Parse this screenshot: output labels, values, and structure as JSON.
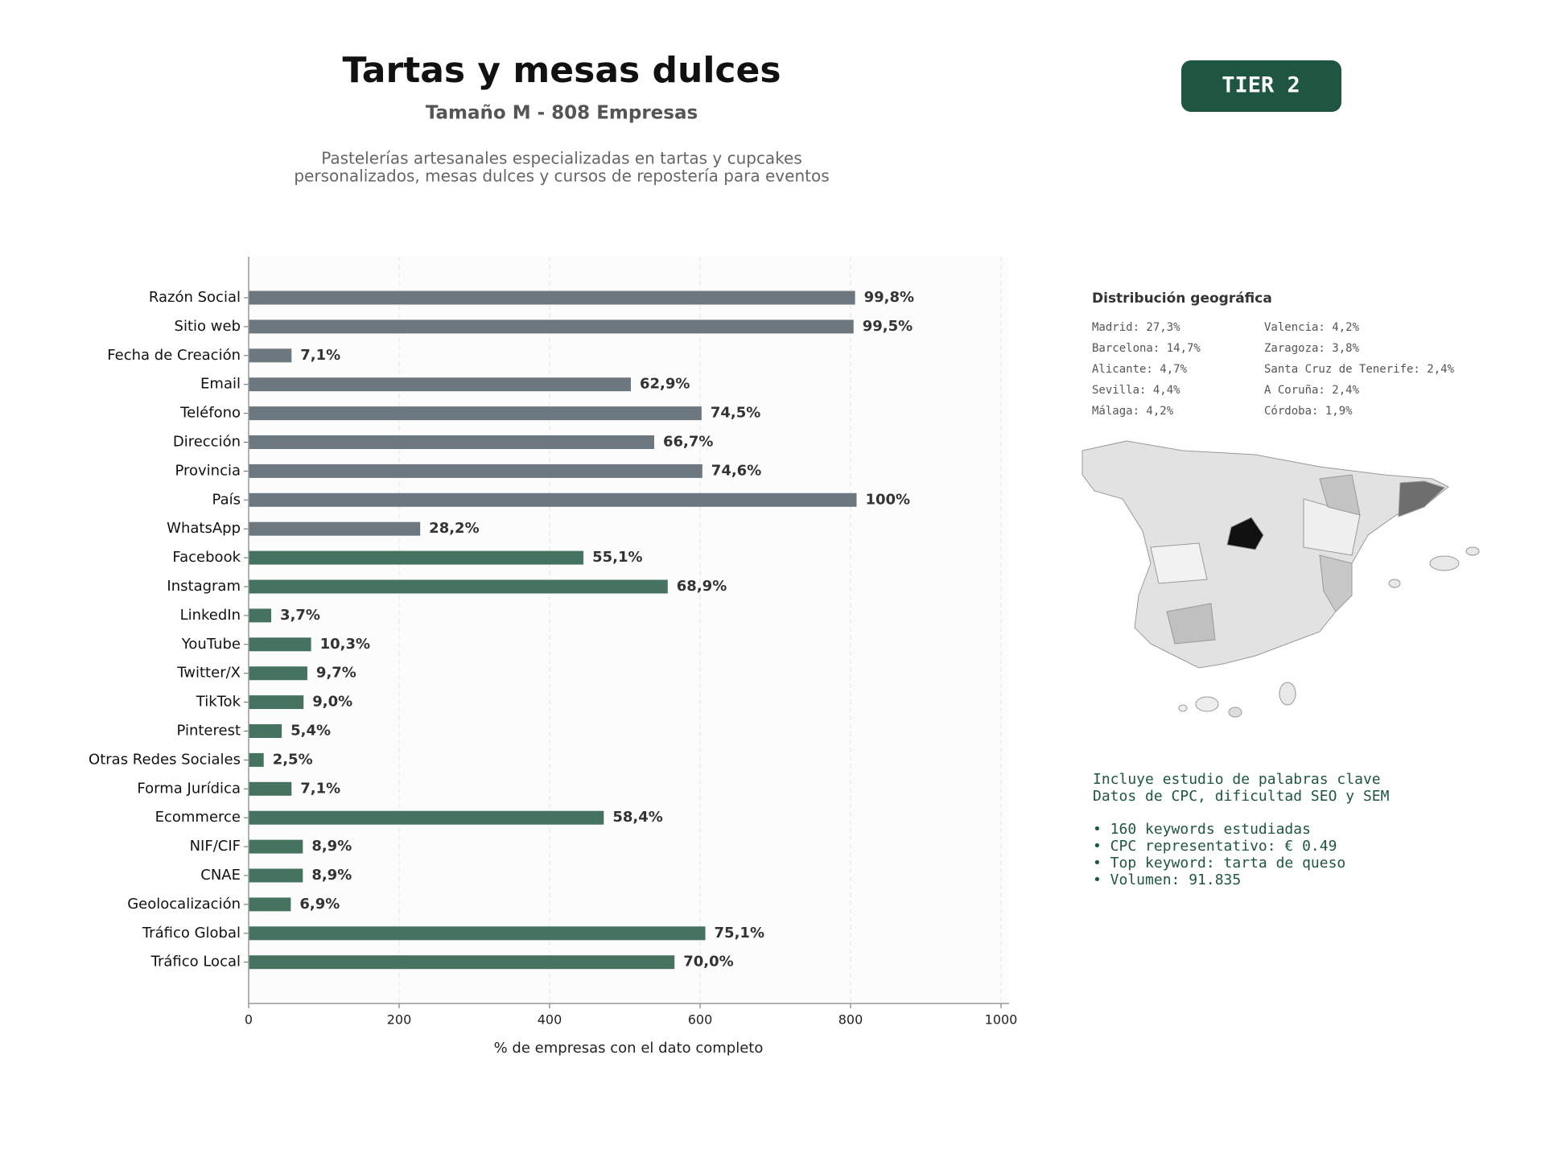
{
  "header": {
    "title": "Tartas y mesas dulces",
    "subtitle": "Tamaño M - 808 Empresas",
    "description": [
      "Pastelerías artesanales especializadas en tartas y cupcakes",
      "personalizados, mesas dulces y cursos de repostería para eventos"
    ],
    "tier": "TIER 2"
  },
  "chart_data": {
    "type": "hbar",
    "categories": [
      "Razón Social",
      "Sitio web",
      "Fecha de Creación",
      "Email",
      "Teléfono",
      "Dirección",
      "Provincia",
      "País",
      "WhatsApp",
      "Facebook",
      "Instagram",
      "LinkedIn",
      "YouTube",
      "Twitter/X",
      "TikTok",
      "Pinterest",
      "Otras Redes Sociales",
      "Forma Jurídica",
      "Ecommerce",
      "NIF/CIF",
      "CNAE",
      "Geolocalización",
      "Tráfico Global",
      "Tráfico Local"
    ],
    "values": [
      806,
      804,
      57,
      508,
      602,
      539,
      603,
      808,
      228,
      445,
      557,
      30,
      83,
      78,
      73,
      44,
      20,
      57,
      472,
      72,
      72,
      56,
      607,
      566
    ],
    "value_labels": [
      "99,8%",
      "99,5%",
      "7,1%",
      "62,9%",
      "74,5%",
      "66,7%",
      "74,6%",
      "100%",
      "28,2%",
      "55,1%",
      "68,9%",
      "3,7%",
      "10,3%",
      "9,7%",
      "9,0%",
      "5,4%",
      "2,5%",
      "7,1%",
      "58,4%",
      "8,9%",
      "8,9%",
      "6,9%",
      "75,1%",
      "70,0%"
    ],
    "colors": [
      "#6c7780",
      "#6c7780",
      "#6c7780",
      "#6c7780",
      "#6c7780",
      "#6c7780",
      "#6c7780",
      "#6c7780",
      "#6c7780",
      "#46735f",
      "#46735f",
      "#46735f",
      "#46735f",
      "#46735f",
      "#46735f",
      "#46735f",
      "#46735f",
      "#46735f",
      "#46735f",
      "#46735f",
      "#46735f",
      "#46735f",
      "#46735f",
      "#46735f"
    ],
    "xlabel": "% de empresas con el dato completo",
    "xlim": [
      0,
      1000
    ],
    "xticks": [
      0,
      200,
      400,
      600,
      800,
      1000
    ],
    "grid": true
  },
  "geo": {
    "title": "Distribución geográfica",
    "items": [
      "Madrid: 27,3%",
      "Barcelona: 14,7%",
      "Alicante: 4,7%",
      "Sevilla: 4,4%",
      "Málaga: 4,2%",
      "Valencia: 4,2%",
      "Zaragoza: 3,8%",
      "Santa Cruz de Tenerife: 2,4%",
      "A Coruña: 2,4%",
      "Córdoba: 1,9%"
    ]
  },
  "keywords": {
    "intro": [
      "Incluye estudio de palabras clave",
      "Datos de CPC, dificultad SEO y SEM"
    ],
    "bullets": [
      "• 160 keywords estudiadas",
      "• CPC representativo: € 0.49",
      "• Top keyword: tarta de queso",
      "• Volumen: 91.835"
    ]
  }
}
